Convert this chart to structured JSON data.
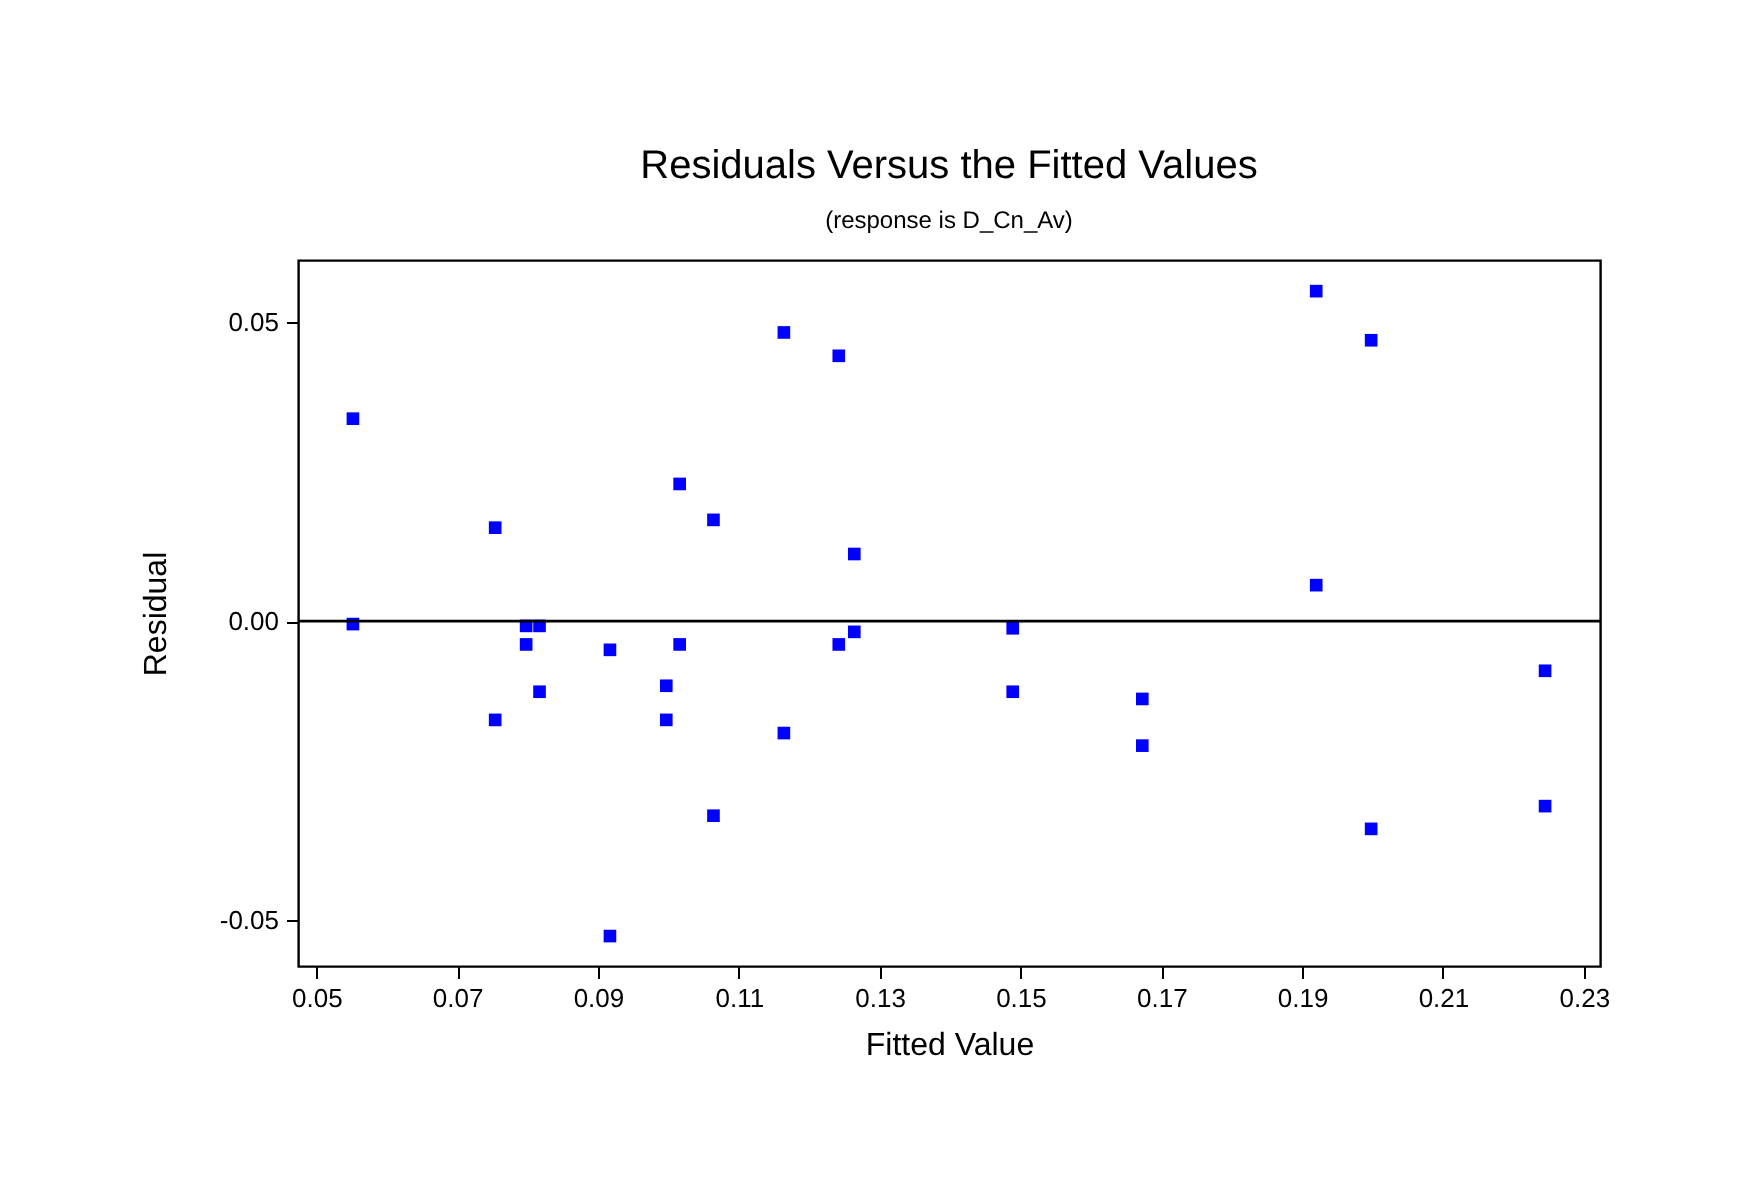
{
  "chart_data": {
    "type": "scatter",
    "title": "Residuals Versus the Fitted Values",
    "subtitle": "(response is D_Cn_Av)",
    "xlabel": "Fitted Value",
    "ylabel": "Residual",
    "x": [
      0.0552,
      0.0552,
      0.0754,
      0.0754,
      0.0798,
      0.0817,
      0.0798,
      0.0817,
      0.0917,
      0.0917,
      0.0997,
      0.0997,
      0.1016,
      0.1016,
      0.1064,
      0.1064,
      0.1164,
      0.1164,
      0.1242,
      0.1242,
      0.1264,
      0.1264,
      0.1489,
      0.1489,
      0.1673,
      0.1673,
      0.192,
      0.192,
      0.1998,
      0.1998,
      0.2245,
      0.2245
    ],
    "series": [
      {
        "color": "#0000ff",
        "values": [
          0.0338,
          -0.0005,
          0.0156,
          -0.0165,
          -0.0008,
          -0.0008,
          -0.0039,
          -0.0118,
          -0.0048,
          -0.0526,
          -0.0108,
          -0.0165,
          0.0229,
          -0.0039,
          0.0169,
          -0.0325,
          0.0482,
          -0.0187,
          0.0443,
          -0.0039,
          0.0112,
          -0.0018,
          -0.0012,
          -0.0118,
          -0.013,
          -0.0208,
          0.0551,
          0.006,
          0.0469,
          -0.0347,
          -0.0083,
          -0.0309
        ]
      }
    ],
    "xlim": [
      0.0474,
      0.2323
    ],
    "ylim": [
      -0.0576,
      0.0603
    ],
    "xticks": [
      0.05,
      0.07,
      0.09,
      0.11,
      0.13,
      0.15,
      0.17,
      0.19,
      0.21,
      0.23
    ],
    "yticks": [
      -0.05,
      {
        "value": 0,
        "label": "0.00"
      },
      0.05
    ],
    "ref_lines": [
      {
        "axis": "y",
        "value": 0,
        "color": "#000000"
      }
    ],
    "marker": "square",
    "grid": false
  }
}
